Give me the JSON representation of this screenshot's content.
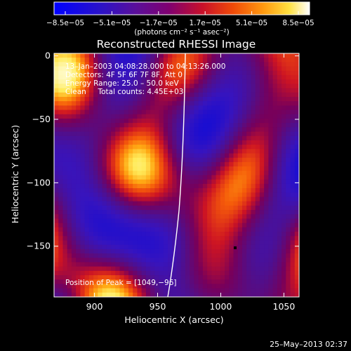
{
  "chart_data": {
    "type": "heatmap",
    "title": "Reconstructed RHESSI Image",
    "xlabel": "Heliocentric X (arcsec)",
    "ylabel": "Heliocentric Y (arcsec)",
    "xlim": [
      868,
      1062
    ],
    "ylim": [
      -190,
      2
    ],
    "x_ticks": [
      {
        "value": 900,
        "label": "900"
      },
      {
        "value": 950,
        "label": "950"
      },
      {
        "value": 1000,
        "label": "1000"
      },
      {
        "value": 1050,
        "label": "1050"
      }
    ],
    "y_ticks": [
      {
        "value": 0,
        "label": "0"
      },
      {
        "value": -50,
        "label": "−50"
      },
      {
        "value": -100,
        "label": "−100"
      },
      {
        "value": -150,
        "label": "−150"
      }
    ],
    "colorbar": {
      "min": -8.5e-05,
      "max": 8.5e-05,
      "tick_labels": [
        "−8.5e−05",
        "−5.1e−05",
        "−1.7e−05",
        "1.7e−05",
        "5.1e−05",
        "8.5e−05"
      ],
      "units_label": "(photons cm⁻² s⁻¹ asec⁻²)"
    },
    "info_lines": [
      "13–Jan–2003 04:08:28.000 to 04:13:26.000",
      "Detectors: 4F 5F 6F 7F 8F, Att 0",
      "Energy Range: 25.0 – 50.0 keV",
      "Clean     Total counts: 4.45E+03"
    ],
    "peak_label": "Position of Peak = [1049,−96]",
    "peak_position": [
      1049,
      -96
    ],
    "colors": {
      "background": "#000000",
      "axes": "#ffffff",
      "text": "#ffffff"
    }
  },
  "footer": {
    "timestamp": "25–May–2013 02:37"
  }
}
